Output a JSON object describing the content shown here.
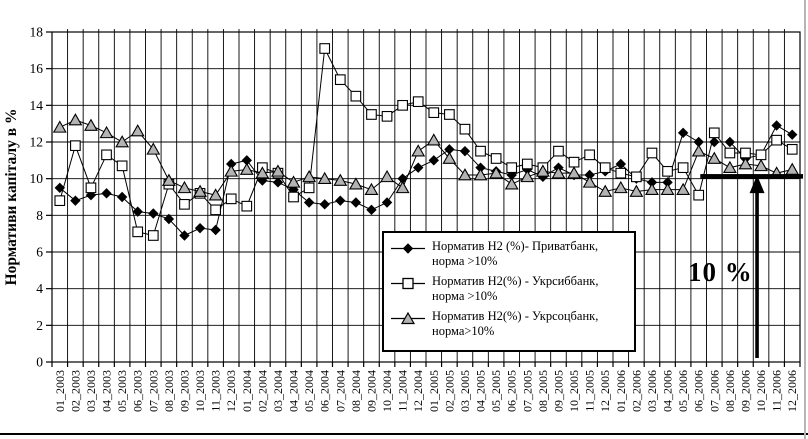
{
  "chart_data": {
    "type": "line",
    "title": "",
    "xlabel": "",
    "ylabel": "Нормативи капіталу в %",
    "ylim": [
      0,
      18
    ],
    "yticks": [
      0,
      2,
      4,
      6,
      8,
      10,
      12,
      14,
      16,
      18
    ],
    "grid": "both",
    "legend_position": "inside-bottom-center",
    "categories": [
      "01_2003",
      "02_2003",
      "03_2003",
      "04_2003",
      "05_2003",
      "06_2003",
      "07_2003",
      "08_2003",
      "09_2003",
      "10_2003",
      "11_2003",
      "12_2003",
      "01_2004",
      "02_2004",
      "03_2004",
      "04_2004",
      "05_2004",
      "06_2004",
      "07_2004",
      "08_2004",
      "09_2004",
      "10_2004",
      "11_2004",
      "12_2004",
      "01_2005",
      "02_2005",
      "03_2005",
      "04_2005",
      "05_2005",
      "06_2005",
      "07_2005",
      "08_2005",
      "09_2005",
      "10_2005",
      "11_2005",
      "12_2005",
      "01_2006",
      "02_2006",
      "03_2006",
      "04_2006",
      "05_2006",
      "06_2006",
      "07_2006",
      "08_2006",
      "09_2006",
      "10_2006",
      "11_2006",
      "12_2006"
    ],
    "series": [
      {
        "name": "Норматив Н2 (%)- Приватбанк, норма >10%",
        "marker": "diamond",
        "marker_fill": "#000000",
        "line_color": "#000000",
        "values": [
          9.5,
          8.8,
          9.1,
          9.2,
          9.0,
          8.2,
          8.1,
          7.8,
          6.9,
          7.3,
          7.2,
          10.8,
          11.0,
          9.9,
          9.8,
          9.4,
          8.7,
          8.6,
          8.8,
          8.7,
          8.3,
          8.7,
          10.0,
          10.6,
          11.0,
          11.6,
          11.5,
          10.6,
          10.4,
          10.2,
          10.5,
          10.1,
          10.6,
          10.2,
          10.2,
          10.4,
          10.8,
          10.0,
          9.8,
          9.8,
          12.5,
          12.0,
          12.0,
          12.0,
          11.1,
          11.3,
          12.9,
          12.4
        ]
      },
      {
        "name": "Норматив Н2(%) - Укрсиббанк, норма >10%",
        "marker": "square",
        "marker_fill": "#ffffff",
        "line_color": "#000000",
        "values": [
          8.8,
          11.8,
          9.5,
          11.3,
          10.7,
          7.1,
          6.9,
          9.7,
          8.6,
          9.2,
          8.3,
          8.9,
          8.5,
          10.6,
          10.3,
          9.0,
          9.5,
          17.1,
          15.4,
          14.5,
          13.5,
          13.4,
          14.0,
          14.2,
          13.6,
          13.5,
          12.7,
          11.5,
          11.1,
          10.6,
          10.8,
          10.6,
          11.5,
          10.9,
          11.3,
          10.6,
          10.3,
          10.1,
          11.4,
          10.4,
          10.6,
          9.1,
          12.5,
          11.4,
          11.4,
          11.3,
          12.1,
          11.6
        ]
      },
      {
        "name": "Норматив Н2(%) - Укрсоцбанк, норма>10%",
        "marker": "triangle",
        "marker_fill": "#b3b3b3",
        "line_color": "#000000",
        "values": [
          12.8,
          13.2,
          12.9,
          12.5,
          12.0,
          12.6,
          11.6,
          9.9,
          9.5,
          9.3,
          9.1,
          10.4,
          10.5,
          10.3,
          10.4,
          9.8,
          10.1,
          10.0,
          9.9,
          9.7,
          9.4,
          10.1,
          9.5,
          11.5,
          12.1,
          11.1,
          10.2,
          10.2,
          10.3,
          9.7,
          10.1,
          10.4,
          10.3,
          10.3,
          9.8,
          9.3,
          9.5,
          9.3,
          9.4,
          9.4,
          9.4,
          11.5,
          11.1,
          10.6,
          10.8,
          10.7,
          10.3,
          10.5
        ]
      }
    ],
    "annotation": {
      "label": "10 %",
      "norm_value": 10,
      "line_from_month": "07_2006",
      "line_to_month": "12_2006",
      "arrow_month": "10_2006"
    }
  }
}
